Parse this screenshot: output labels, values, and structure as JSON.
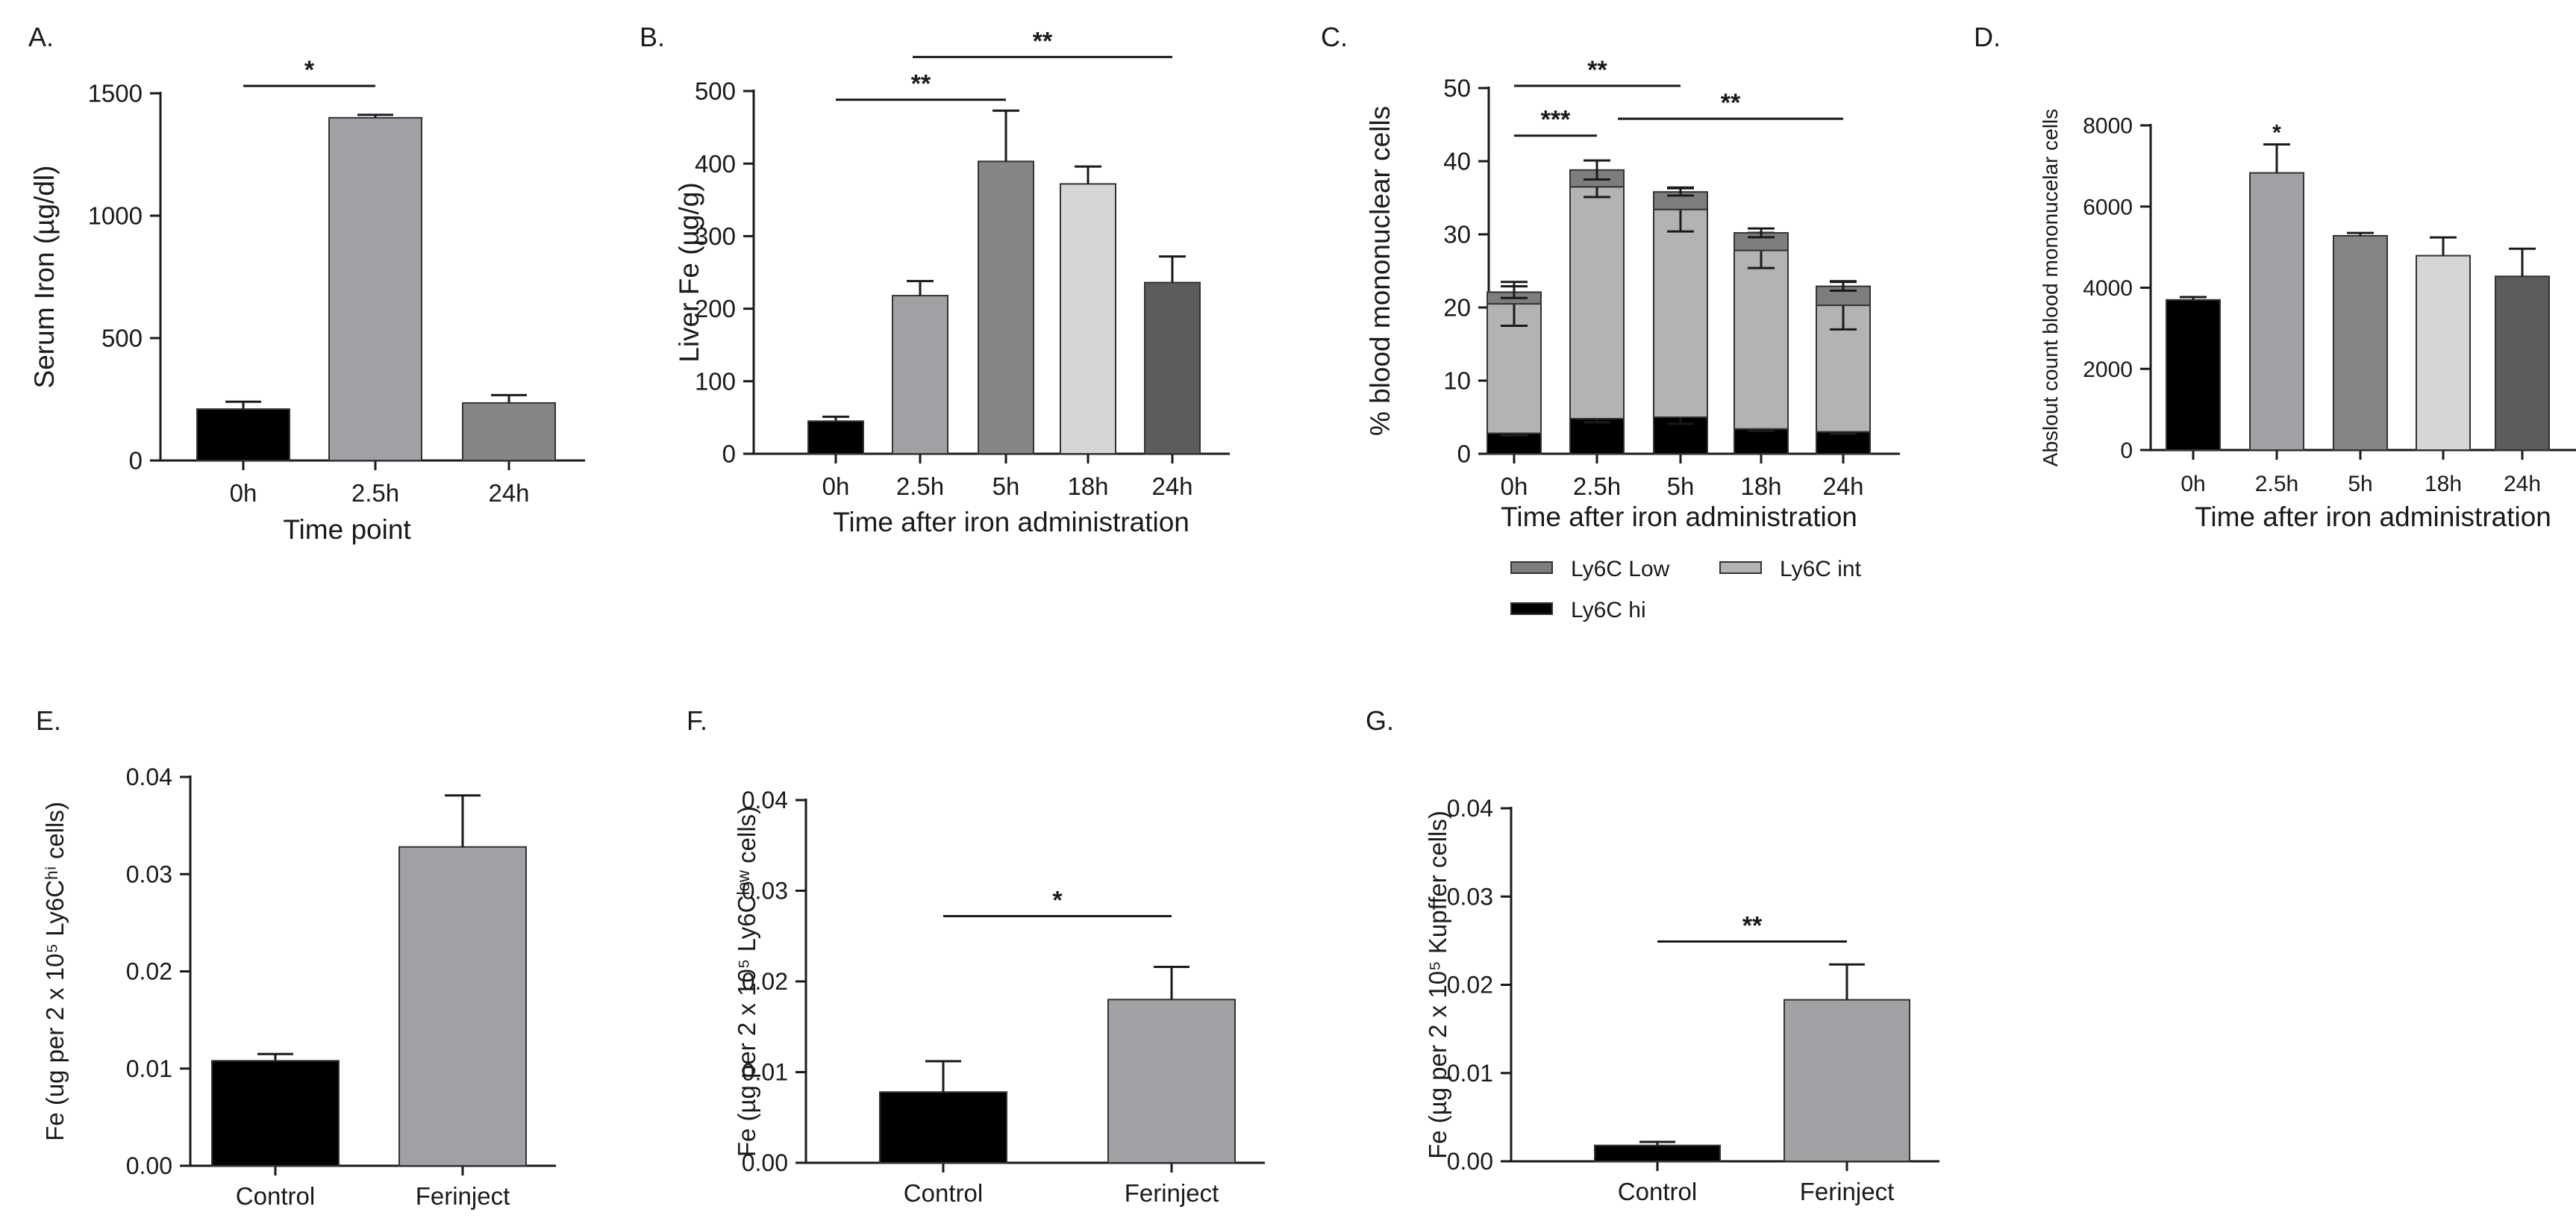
{
  "chart_data": [
    {
      "id": "A",
      "type": "bar",
      "panel_label": "A.",
      "title": "",
      "xlabel": "Time point",
      "ylabel": "Serum Iron (µg/dl)",
      "ylim": [
        0,
        1500
      ],
      "yticks": [
        "0",
        "500",
        "1000",
        "1500"
      ],
      "categories": [
        "0h",
        "2.5h",
        "24h"
      ],
      "values": [
        210,
        1400,
        235
      ],
      "errors": [
        30,
        12,
        32
      ],
      "colors": [
        "#000000",
        "#a0a0a5",
        "#858585"
      ],
      "significance": [
        {
          "from": 0,
          "to": 1,
          "y": 1530,
          "label": "*"
        }
      ]
    },
    {
      "id": "B",
      "type": "bar",
      "panel_label": "B.",
      "title": "",
      "xlabel": "Time after iron administration",
      "ylabel": "Liver Fe (µg/g)",
      "ylim": [
        0,
        500
      ],
      "yticks": [
        "0",
        "100",
        "200",
        "300",
        "400",
        "500"
      ],
      "categories": [
        "0h",
        "2.5h",
        "5h",
        "18h",
        "24h"
      ],
      "values": [
        45,
        218,
        403,
        372,
        236
      ],
      "errors": [
        6,
        20,
        70,
        24,
        36
      ],
      "colors": [
        "#000000",
        "#a0a0a5",
        "#858585",
        "#d6d6d6",
        "#5c5c5c"
      ],
      "significance": [
        {
          "from": 0,
          "to": 2,
          "y": 488,
          "label": "**"
        },
        {
          "from": 1,
          "to": 4,
          "y": 547,
          "label": "**"
        }
      ]
    },
    {
      "id": "C",
      "type": "bar",
      "stacked": true,
      "panel_label": "C.",
      "title": "",
      "xlabel": "Time after iron administration",
      "ylabel": "% blood mononuclear cells",
      "ylim": [
        0,
        50
      ],
      "yticks": [
        "0",
        "10",
        "20",
        "30",
        "40",
        "50"
      ],
      "categories": [
        "0h",
        "2.5h",
        "5h",
        "18h",
        "24h"
      ],
      "series": [
        {
          "name": "Ly6C hi",
          "color": "#000000",
          "values": [
            2.8,
            4.8,
            5.0,
            3.4,
            3.0
          ],
          "errors": [
            0.3,
            0.5,
            0.9,
            0.3,
            0.3
          ]
        },
        {
          "name": "Ly6C int",
          "color": "#b3b3b3",
          "values": [
            17.7,
            31.7,
            28.4,
            24.4,
            17.3
          ],
          "errors": [
            3.0,
            1.4,
            3.0,
            2.4,
            3.3
          ]
        },
        {
          "name": "Ly6C Low",
          "color": "#7d7d7d",
          "values": [
            1.6,
            2.3,
            2.4,
            2.4,
            2.6
          ],
          "errors": [
            0.8,
            1.3,
            0.5,
            0.6,
            0.6
          ]
        }
      ],
      "legend": {
        "placement": "bottom",
        "order": [
          "Ly6C Low",
          "Ly6C int",
          "Ly6C hi"
        ]
      },
      "significance": [
        {
          "from": 0,
          "to": 2,
          "y": 50.3,
          "label": "**"
        },
        {
          "from": 0,
          "to": 1,
          "y": 43.5,
          "label": "***"
        },
        {
          "from": 1,
          "to": 4,
          "y": 45.8,
          "label": "**"
        }
      ]
    },
    {
      "id": "D",
      "type": "bar",
      "panel_label": "D.",
      "title": "",
      "xlabel": "Time after iron administration",
      "ylabel": "Abslout count blood mononucelar cells",
      "ylim": [
        0,
        8000
      ],
      "yticks": [
        "0",
        "2000",
        "4000",
        "6000",
        "8000"
      ],
      "categories": [
        "0h",
        "2.5h",
        "5h",
        "18h",
        "24h"
      ],
      "values": [
        3700,
        6830,
        5280,
        4790,
        4280
      ],
      "errors": [
        70,
        700,
        70,
        450,
        680
      ],
      "colors": [
        "#000000",
        "#a0a0a5",
        "#858585",
        "#d6d6d6",
        "#5c5c5c"
      ],
      "annotations": [
        {
          "index": 1,
          "label": "*"
        }
      ]
    },
    {
      "id": "E",
      "type": "bar",
      "panel_label": "E.",
      "title": "",
      "xlabel": "",
      "ylabel": "Fe (ug per 2 x 10⁵ Ly6Cʰⁱ cells)",
      "ylim": [
        0,
        0.04
      ],
      "yticks": [
        "0.00",
        "0.01",
        "0.02",
        "0.03",
        "0.04"
      ],
      "categories": [
        "Control",
        "Ferinject"
      ],
      "values": [
        0.0108,
        0.0328
      ],
      "errors": [
        0.0007,
        0.0053
      ],
      "colors": [
        "#000000",
        "#a0a0a5"
      ],
      "significance": []
    },
    {
      "id": "F",
      "type": "bar",
      "panel_label": "F.",
      "title": "",
      "xlabel": "",
      "ylabel": "Fe (µg per 2 x 10⁵ Ly6Cˡᵒʷ cells)",
      "ylim": [
        0,
        0.04
      ],
      "yticks": [
        "0.00",
        "0.01",
        "0.02",
        "0.03",
        "0.04"
      ],
      "categories": [
        "Control",
        "Ferinject"
      ],
      "values": [
        0.0078,
        0.018
      ],
      "errors": [
        0.0034,
        0.0036
      ],
      "colors": [
        "#000000",
        "#a0a0a5"
      ],
      "significance": [
        {
          "from": 0,
          "to": 1,
          "y": 0.0272,
          "label": "*"
        }
      ]
    },
    {
      "id": "G",
      "type": "bar",
      "panel_label": "G.",
      "title": "",
      "xlabel": "",
      "ylabel": "Fe (µg per 2 x 10⁵ Kupffer cells)",
      "ylim": [
        0,
        0.04
      ],
      "yticks": [
        "0.00",
        "0.01",
        "0.02",
        "0.03",
        "0.04"
      ],
      "categories": [
        "Control",
        "Ferinject"
      ],
      "values": [
        0.0018,
        0.0183
      ],
      "errors": [
        0.0004,
        0.004
      ],
      "colors": [
        "#000000",
        "#a0a0a5"
      ],
      "significance": [
        {
          "from": 0,
          "to": 1,
          "y": 0.0249,
          "label": "**"
        }
      ]
    }
  ]
}
